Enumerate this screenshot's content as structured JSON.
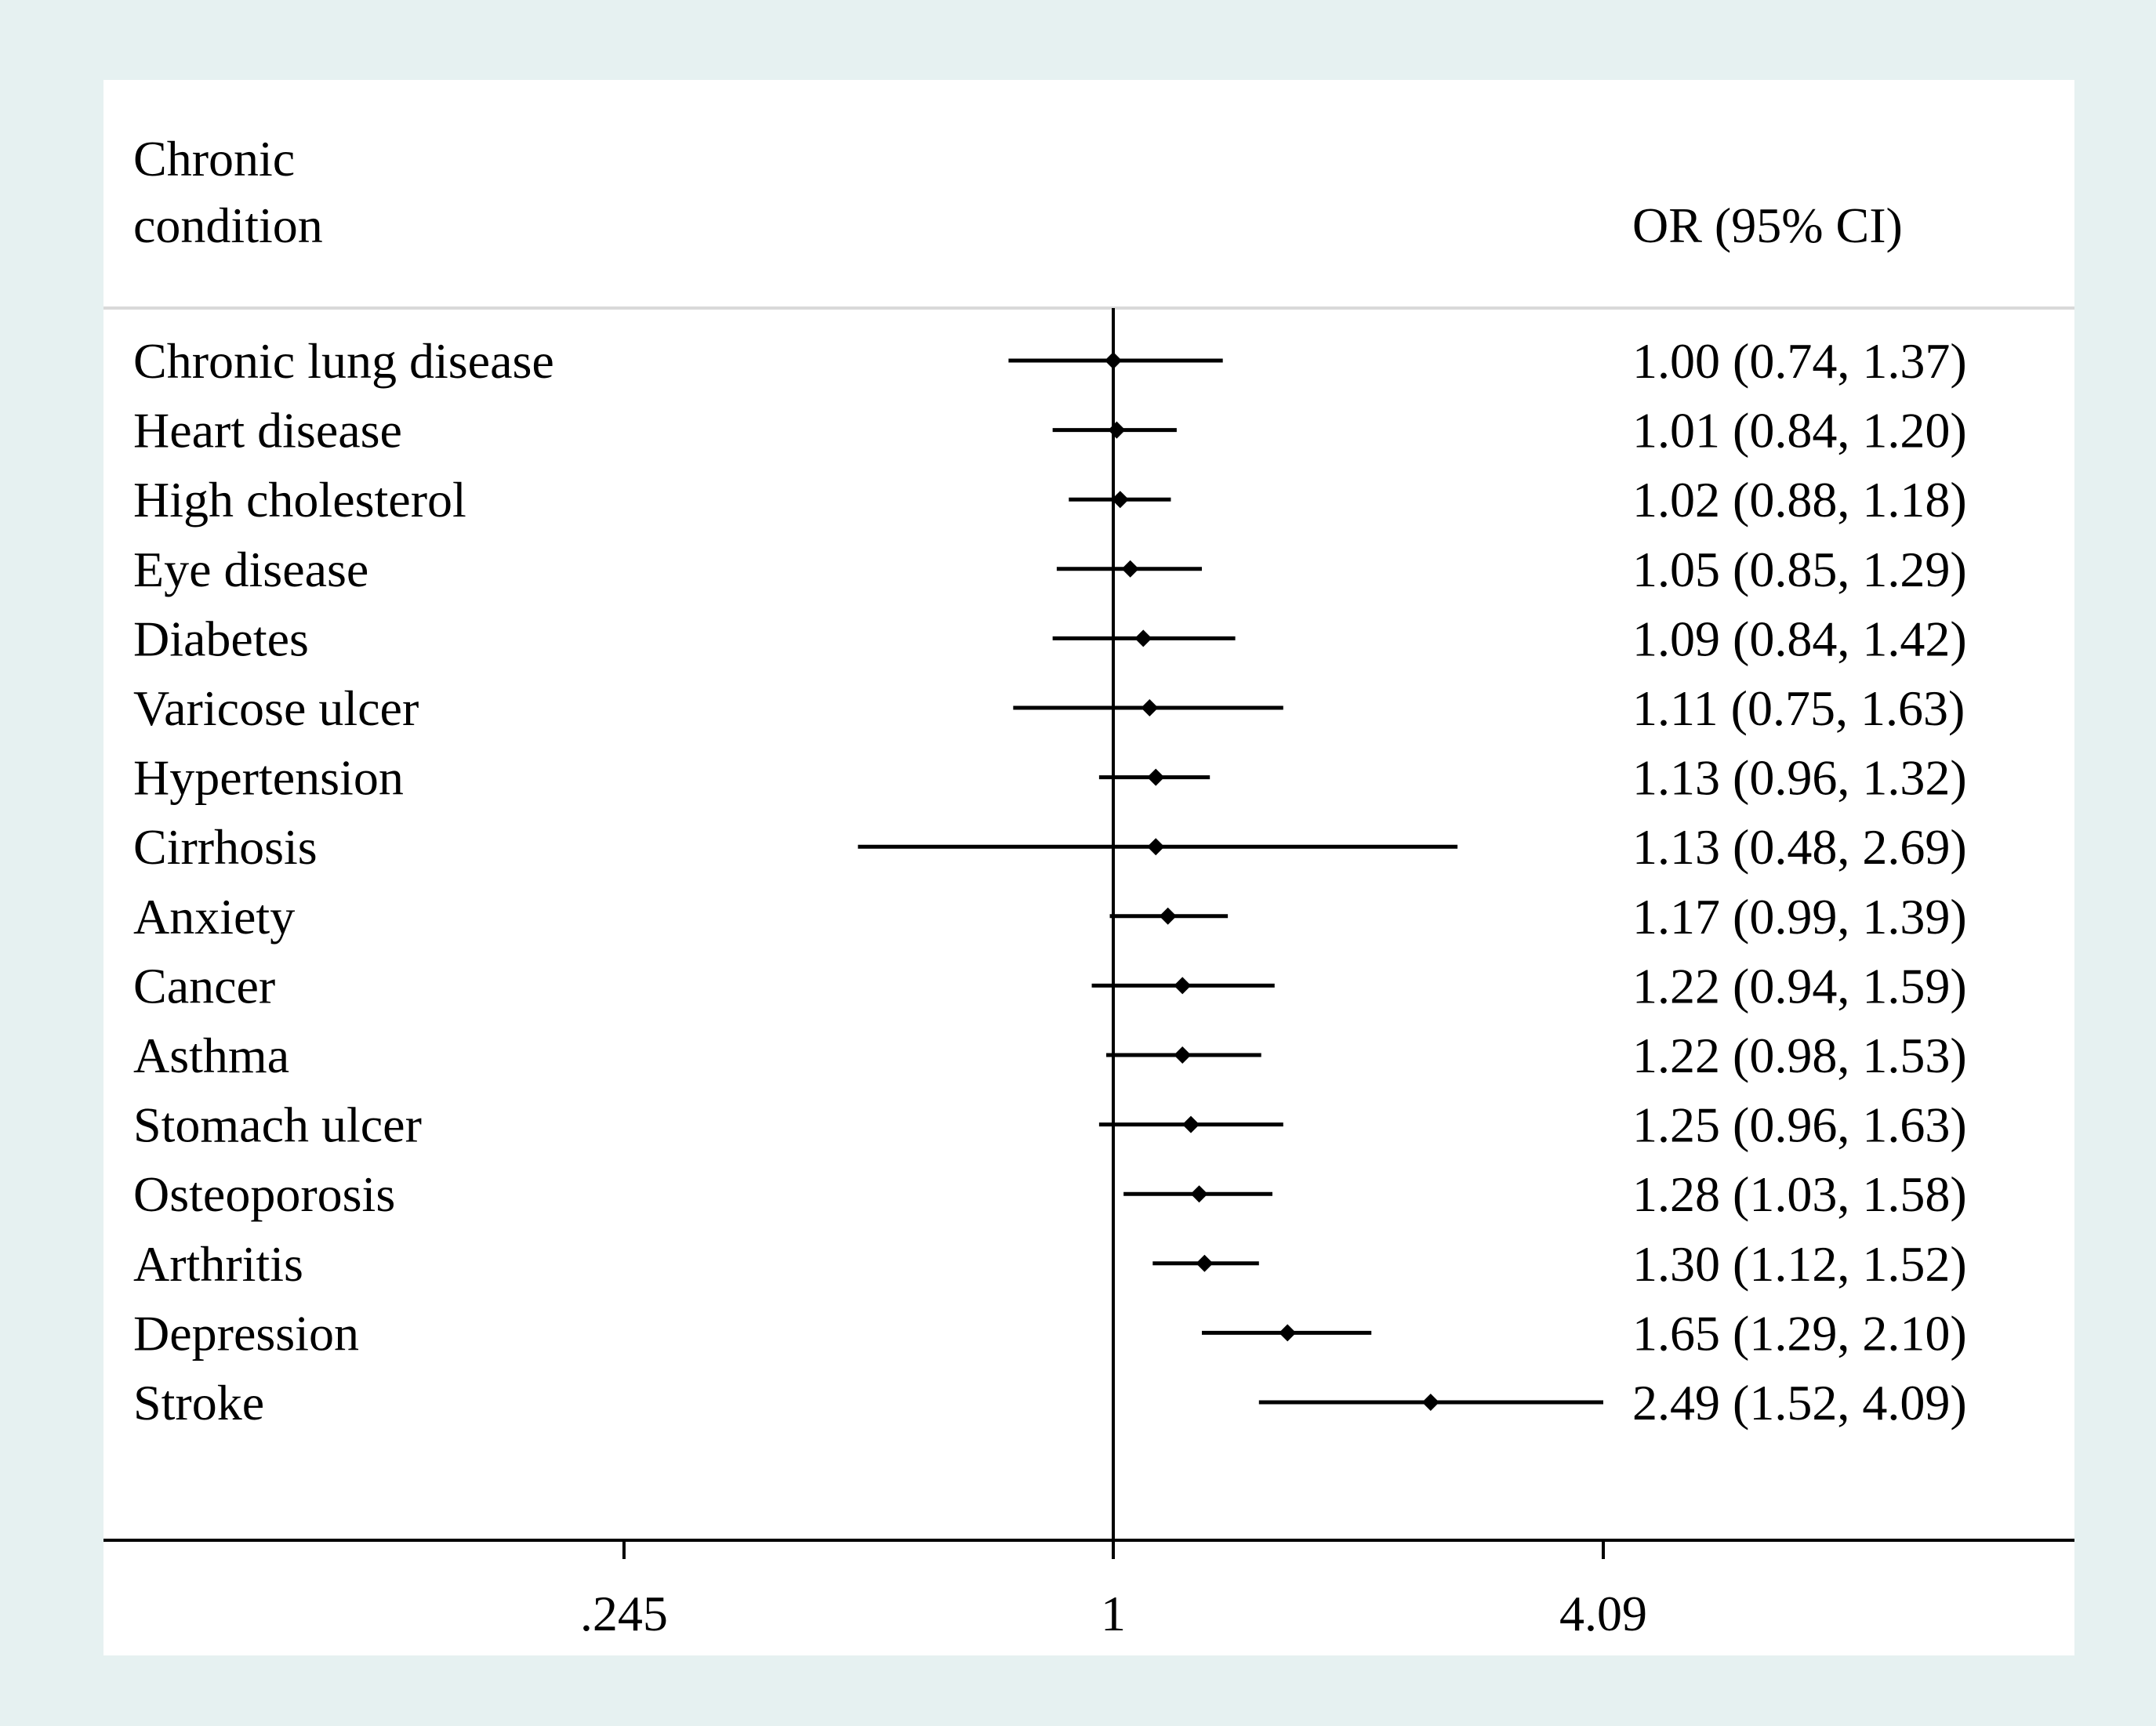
{
  "colors": {
    "background": "#e6f1f1",
    "panel": "#ffffff",
    "ink": "#000000",
    "divider": "#d9d9d9"
  },
  "header": {
    "left_line1": "Chronic",
    "left_line2": "condition",
    "right": "OR (95% CI)"
  },
  "chart_data": {
    "type": "forest",
    "scale": "log",
    "reference_line": 1,
    "xlim": [
      0.06,
      20.5
    ],
    "x_ticks": [
      {
        "value": 0.245,
        "label": ".245"
      },
      {
        "value": 1,
        "label": "1"
      },
      {
        "value": 4.09,
        "label": "4.09"
      }
    ],
    "rows": [
      {
        "label": "Chronic lung disease",
        "or": 1.0,
        "lo": 0.74,
        "hi": 1.37,
        "text": "1.00 (0.74, 1.37)"
      },
      {
        "label": "Heart disease",
        "or": 1.01,
        "lo": 0.84,
        "hi": 1.2,
        "text": "1.01 (0.84, 1.20)"
      },
      {
        "label": "High cholesterol",
        "or": 1.02,
        "lo": 0.88,
        "hi": 1.18,
        "text": "1.02 (0.88, 1.18)"
      },
      {
        "label": "Eye disease",
        "or": 1.05,
        "lo": 0.85,
        "hi": 1.29,
        "text": "1.05 (0.85, 1.29)"
      },
      {
        "label": "Diabetes",
        "or": 1.09,
        "lo": 0.84,
        "hi": 1.42,
        "text": "1.09 (0.84, 1.42)"
      },
      {
        "label": "Varicose ulcer",
        "or": 1.11,
        "lo": 0.75,
        "hi": 1.63,
        "text": "1.11 (0.75, 1.63)"
      },
      {
        "label": "Hypertension",
        "or": 1.13,
        "lo": 0.96,
        "hi": 1.32,
        "text": "1.13 (0.96, 1.32)"
      },
      {
        "label": "Cirrhosis",
        "or": 1.13,
        "lo": 0.48,
        "hi": 2.69,
        "text": "1.13 (0.48, 2.69)"
      },
      {
        "label": "Anxiety",
        "or": 1.17,
        "lo": 0.99,
        "hi": 1.39,
        "text": "1.17 (0.99, 1.39)"
      },
      {
        "label": "Cancer",
        "or": 1.22,
        "lo": 0.94,
        "hi": 1.59,
        "text": "1.22 (0.94, 1.59)"
      },
      {
        "label": "Asthma",
        "or": 1.22,
        "lo": 0.98,
        "hi": 1.53,
        "text": "1.22 (0.98, 1.53)"
      },
      {
        "label": "Stomach ulcer",
        "or": 1.25,
        "lo": 0.96,
        "hi": 1.63,
        "text": "1.25 (0.96, 1.63)"
      },
      {
        "label": "Osteoporosis",
        "or": 1.28,
        "lo": 1.03,
        "hi": 1.58,
        "text": "1.28 (1.03, 1.58)"
      },
      {
        "label": "Arthritis",
        "or": 1.3,
        "lo": 1.12,
        "hi": 1.52,
        "text": "1.30 (1.12, 1.52)"
      },
      {
        "label": "Depression",
        "or": 1.65,
        "lo": 1.29,
        "hi": 2.1,
        "text": "1.65 (1.29, 2.10)"
      },
      {
        "label": "Stroke",
        "or": 2.49,
        "lo": 1.52,
        "hi": 4.09,
        "text": "2.49 (1.52, 4.09)"
      }
    ]
  }
}
